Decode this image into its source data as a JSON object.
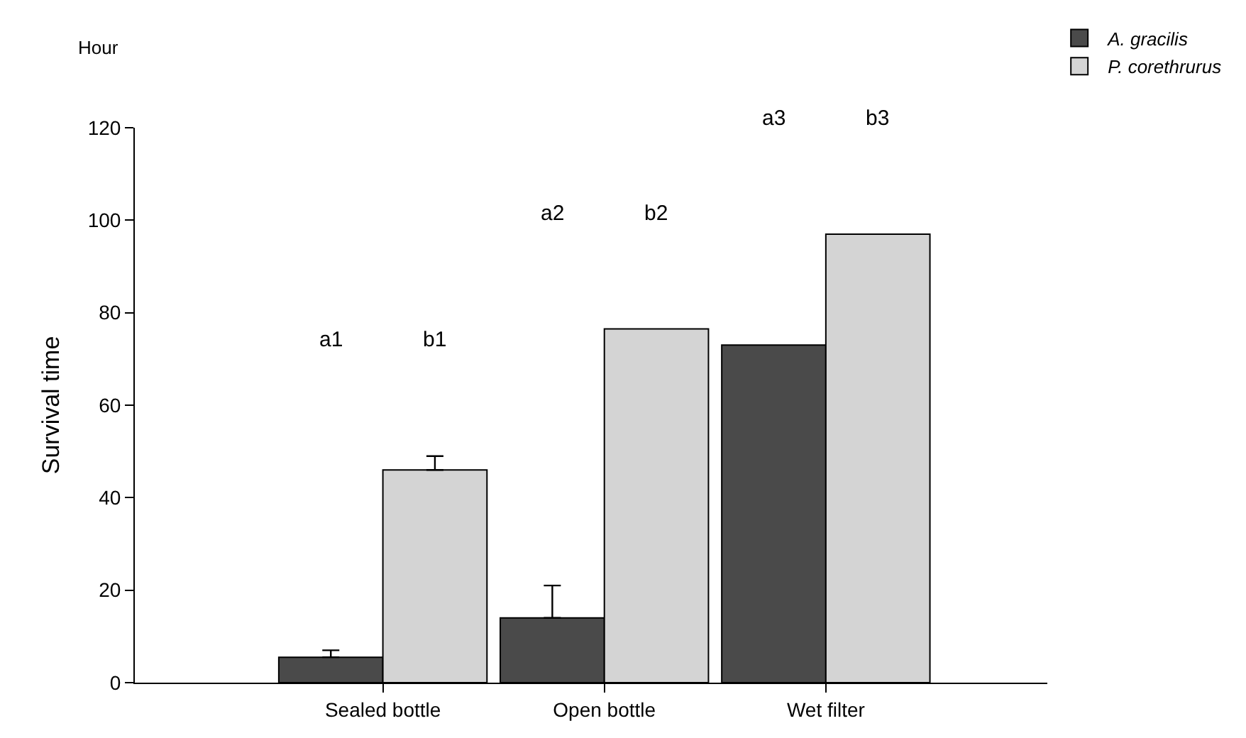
{
  "chart_data": {
    "type": "bar",
    "ylabel": "Survival time",
    "categories": [
      "Sealed bottle",
      "Open bottle",
      "Wet filter"
    ],
    "series": [
      {
        "name": "A. gracilis",
        "color": "#4a4a4a",
        "values": [
          5.5,
          14,
          73
        ],
        "errors": [
          [
            5.5,
            7
          ],
          [
            14,
            21
          ],
          null
        ]
      },
      {
        "name": "P. corethrurus",
        "color": "#d4d4d4",
        "values": [
          46,
          76.5,
          97
        ],
        "errors": [
          [
            46,
            49
          ],
          null,
          null
        ]
      }
    ],
    "ylim": [
      0,
      120
    ],
    "yticks": [
      0,
      20,
      40,
      60,
      80,
      100,
      120
    ],
    "legend": "top right",
    "annotations": [
      "Hour",
      "a1",
      "b1",
      "a2",
      "b2",
      "a3",
      "b3"
    ]
  }
}
